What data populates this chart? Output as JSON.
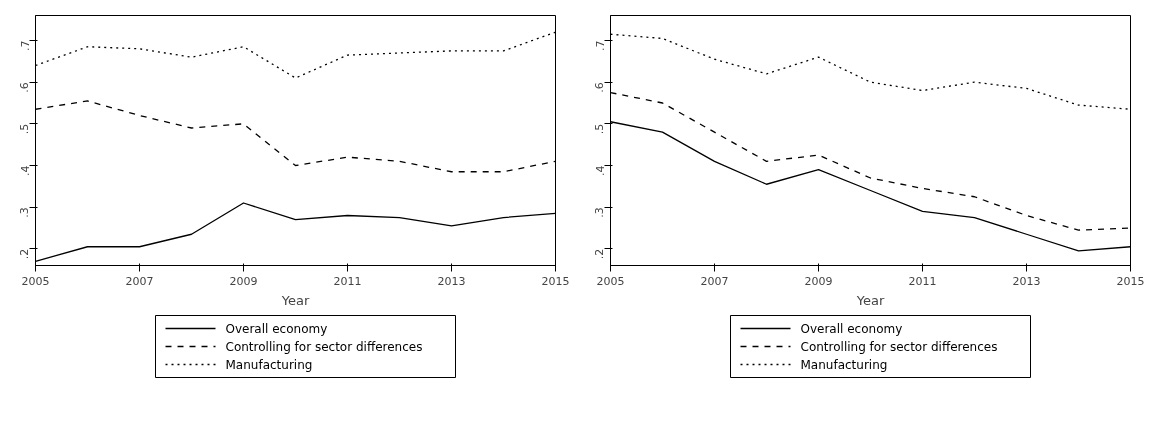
{
  "chart_data": [
    {
      "type": "line",
      "xlabel": "Year",
      "x": [
        2005,
        2006,
        2007,
        2008,
        2009,
        2010,
        2011,
        2012,
        2013,
        2014,
        2015
      ],
      "xlim": [
        2005,
        2015
      ],
      "xticks": [
        2005,
        2007,
        2009,
        2011,
        2013,
        2015
      ],
      "ylim": [
        0.16,
        0.76
      ],
      "yticks": [
        {
          "value": 0.2,
          "label": ".2"
        },
        {
          "value": 0.3,
          "label": ".3"
        },
        {
          "value": 0.4,
          "label": ".4"
        },
        {
          "value": 0.5,
          "label": ".5"
        },
        {
          "value": 0.6,
          "label": ".6"
        },
        {
          "value": 0.7,
          "label": ".7"
        }
      ],
      "grid": false,
      "legend": "bottom",
      "marker": "none",
      "series": [
        {
          "name": "Overall economy",
          "color": "#000000",
          "line_style": "solid",
          "values": [
            0.17,
            0.205,
            0.205,
            0.235,
            0.31,
            0.27,
            0.28,
            0.275,
            0.255,
            0.275,
            0.285
          ]
        },
        {
          "name": "Controlling for sector differences",
          "color": "#000000",
          "line_style": "dashed",
          "values": [
            0.535,
            0.555,
            0.52,
            0.49,
            0.5,
            0.4,
            0.42,
            0.41,
            0.385,
            0.385,
            0.41
          ]
        },
        {
          "name": "Manufacturing",
          "color": "#000000",
          "line_style": "dotted",
          "values": [
            0.64,
            0.685,
            0.68,
            0.66,
            0.685,
            0.61,
            0.665,
            0.67,
            0.675,
            0.675,
            0.72
          ]
        }
      ]
    },
    {
      "type": "line",
      "xlabel": "Year",
      "x": [
        2005,
        2006,
        2007,
        2008,
        2009,
        2010,
        2011,
        2012,
        2013,
        2014,
        2015
      ],
      "xlim": [
        2005,
        2015
      ],
      "xticks": [
        2005,
        2007,
        2009,
        2011,
        2013,
        2015
      ],
      "ylim": [
        0.16,
        0.76
      ],
      "yticks": [
        {
          "value": 0.2,
          "label": ".2"
        },
        {
          "value": 0.3,
          "label": ".3"
        },
        {
          "value": 0.4,
          "label": ".4"
        },
        {
          "value": 0.5,
          "label": ".5"
        },
        {
          "value": 0.6,
          "label": ".6"
        },
        {
          "value": 0.7,
          "label": ".7"
        }
      ],
      "grid": false,
      "legend": "bottom",
      "marker": "none",
      "series": [
        {
          "name": "Overall economy",
          "color": "#000000",
          "line_style": "solid",
          "values": [
            0.505,
            0.48,
            0.41,
            0.355,
            0.39,
            0.34,
            0.29,
            0.275,
            0.235,
            0.195,
            0.205
          ]
        },
        {
          "name": "Controlling for sector differences",
          "color": "#000000",
          "line_style": "dashed",
          "values": [
            0.575,
            0.55,
            0.48,
            0.41,
            0.425,
            0.37,
            0.345,
            0.325,
            0.28,
            0.245,
            0.25
          ]
        },
        {
          "name": "Manufacturing",
          "color": "#000000",
          "line_style": "dotted",
          "values": [
            0.715,
            0.705,
            0.655,
            0.62,
            0.66,
            0.6,
            0.58,
            0.6,
            0.585,
            0.545,
            0.535
          ]
        }
      ]
    }
  ]
}
